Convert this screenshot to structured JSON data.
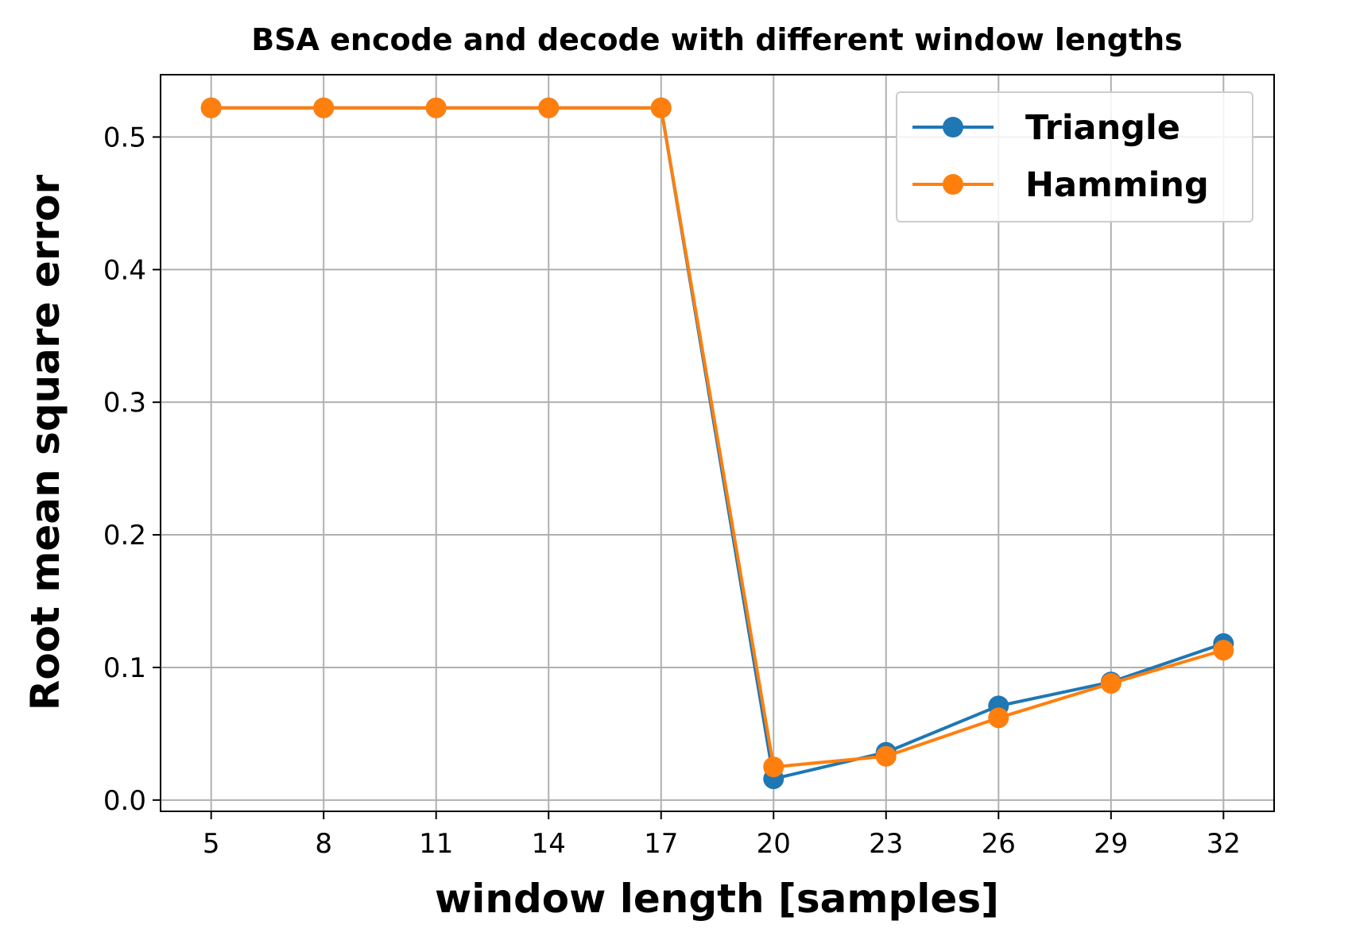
{
  "chart_data": {
    "type": "line",
    "title": "BSA encode and decode with different window lengths",
    "xlabel": "window length [samples]",
    "ylabel": "Root mean square error",
    "x": [
      5,
      8,
      11,
      14,
      17,
      20,
      23,
      26,
      29,
      32
    ],
    "x_ticks": [
      "5",
      "8",
      "11",
      "14",
      "17",
      "20",
      "23",
      "26",
      "29",
      "32"
    ],
    "y_ticks": [
      "0.0",
      "0.1",
      "0.2",
      "0.3",
      "0.4",
      "0.5"
    ],
    "xlim": [
      3.65,
      33.35
    ],
    "ylim": [
      -0.0085,
      0.547
    ],
    "grid": true,
    "legend_position": "upper right",
    "series": [
      {
        "name": "Triangle",
        "color": "#1f77b4",
        "values": [
          0.522,
          0.522,
          0.522,
          0.522,
          0.522,
          0.016,
          0.036,
          0.071,
          0.089,
          0.118
        ]
      },
      {
        "name": "Hamming",
        "color": "#ff7f0e",
        "values": [
          0.522,
          0.522,
          0.522,
          0.522,
          0.522,
          0.025,
          0.033,
          0.062,
          0.088,
          0.113
        ]
      }
    ]
  }
}
